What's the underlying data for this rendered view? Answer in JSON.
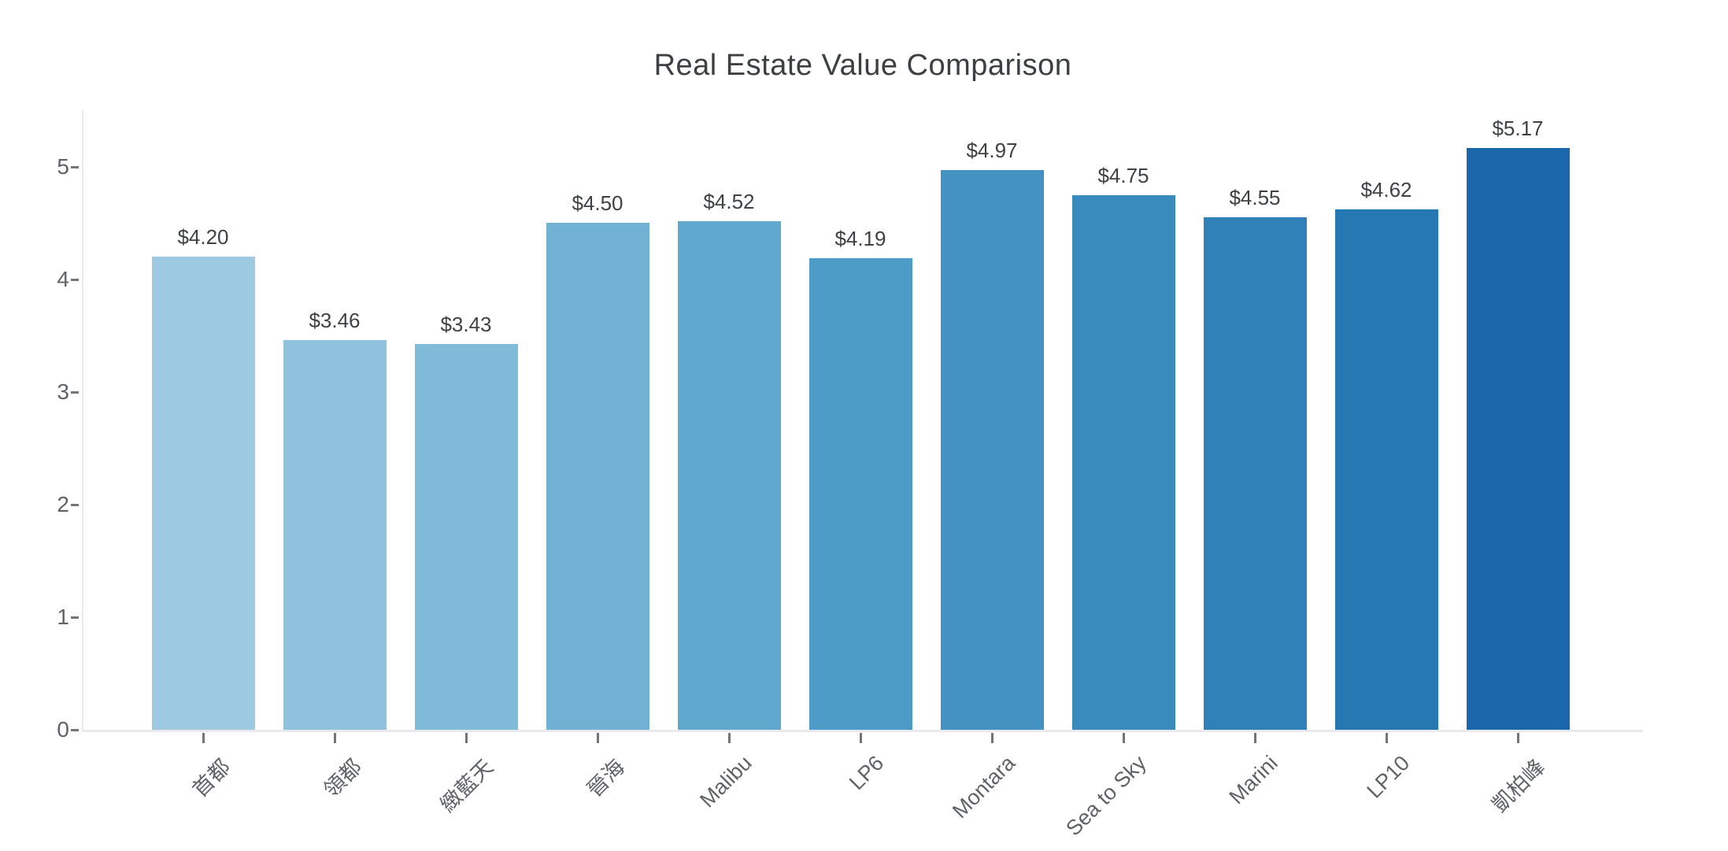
{
  "chart_data": {
    "type": "bar",
    "title": "Real Estate Value Comparison",
    "categories": [
      "首都",
      "領都",
      "緻藍天",
      "晉海",
      "Malibu",
      "LP6",
      "Montara",
      "Sea to Sky",
      "Marini",
      "LP10",
      "凱柏峰"
    ],
    "values": [
      4.2,
      3.46,
      3.43,
      4.5,
      4.52,
      4.19,
      4.97,
      4.75,
      4.55,
      4.62,
      5.17
    ],
    "value_labels": [
      "$4.20",
      "$3.46",
      "$3.43",
      "$4.50",
      "$4.52",
      "$4.19",
      "$4.97",
      "$4.75",
      "$4.55",
      "$4.62",
      "$5.17"
    ],
    "value_prefix": "$",
    "bar_colors": [
      "#9dc9e3",
      "#90c2de",
      "#80bad9",
      "#70b1d4",
      "#61a8ce",
      "#4d9bc7",
      "#4392c2",
      "#398abd",
      "#2f81b8",
      "#2578b2",
      "#1a68ab"
    ],
    "xlabel": "",
    "ylabel": "",
    "ylim": [
      0,
      5.5
    ],
    "yticks": [
      0,
      1,
      2,
      3,
      4,
      5
    ],
    "x_tick_rotation_deg": 45,
    "grid": "off",
    "legend": "none"
  },
  "style": {
    "background_color": "#ffffff",
    "title_color": "#3c4043",
    "value_label_color": "#3f4245",
    "tick_label_color": "#5f6368",
    "tick_mark_color": "#757575",
    "axis_line_color": "#e7e9ec"
  }
}
